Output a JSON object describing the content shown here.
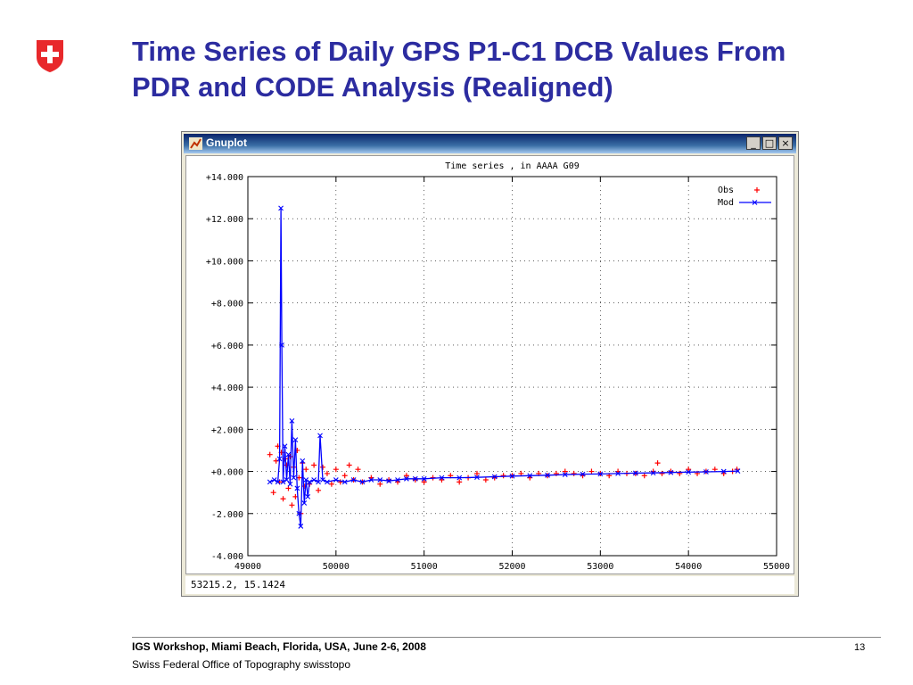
{
  "slide": {
    "title_lines": [
      "Time Series of Daily GPS P1-C1 DCB Values From",
      "PDR and CODE Analysis (Realigned)"
    ],
    "logo_icon": "swiss-cross-shield-icon",
    "brand_color": "#2c2ca0"
  },
  "window": {
    "title": "Gnuplot",
    "app_icon": "gnuplot-icon",
    "buttons": {
      "minimize": "_",
      "maximize": "□",
      "close": "×"
    },
    "status_text": "53215.2,  15.1424"
  },
  "chart_data": {
    "type": "scatter",
    "title": "Time series , in AAAA G09",
    "xlabel": "",
    "ylabel": "",
    "xlim": [
      49000,
      55000
    ],
    "ylim": [
      -4,
      14
    ],
    "x_ticks": [
      "49000",
      "50000",
      "51000",
      "52000",
      "53000",
      "54000",
      "55000"
    ],
    "y_ticks": [
      "-4.000",
      "-2.000",
      "+0.000",
      "+2.000",
      "+4.000",
      "+6.000",
      "+8.000",
      "+10.000",
      "+12.000",
      "+14.000"
    ],
    "grid": true,
    "legend_position": "top-right",
    "series": [
      {
        "name": "Obs",
        "marker": "+",
        "color": "#ff0000",
        "x": [
          49250,
          49290,
          49320,
          49340,
          49360,
          49380,
          49400,
          49420,
          49440,
          49460,
          49480,
          49500,
          49520,
          49540,
          49560,
          49580,
          49600,
          49620,
          49640,
          49660,
          49700,
          49750,
          49800,
          49850,
          49900,
          49950,
          50000,
          50050,
          50100,
          50150,
          50200,
          50250,
          50300,
          50400,
          50500,
          50600,
          50700,
          50800,
          50900,
          51000,
          51100,
          51200,
          51300,
          51400,
          51500,
          51600,
          51700,
          51800,
          51900,
          52000,
          52100,
          52200,
          52300,
          52400,
          52500,
          52600,
          52700,
          52800,
          52900,
          53000,
          53100,
          53200,
          53300,
          53400,
          53500,
          53600,
          53650,
          53700,
          53800,
          53900,
          54000,
          54100,
          54200,
          54300,
          54400,
          54500,
          54550
        ],
        "y": [
          0.8,
          -1.0,
          0.5,
          1.2,
          -0.5,
          0.9,
          -1.3,
          0.6,
          0.3,
          -0.8,
          0.7,
          -1.6,
          0.2,
          -1.2,
          1.0,
          -0.3,
          -2.0,
          0.4,
          -0.7,
          0.1,
          -0.6,
          0.3,
          -0.9,
          0.2,
          -0.1,
          -0.6,
          0.1,
          -0.5,
          -0.2,
          0.3,
          -0.4,
          0.1,
          -0.5,
          -0.3,
          -0.6,
          -0.4,
          -0.5,
          -0.2,
          -0.4,
          -0.5,
          -0.3,
          -0.4,
          -0.2,
          -0.5,
          -0.3,
          -0.1,
          -0.4,
          -0.3,
          -0.2,
          -0.2,
          -0.1,
          -0.3,
          -0.1,
          -0.2,
          -0.1,
          0.0,
          -0.1,
          -0.2,
          0.0,
          -0.1,
          -0.2,
          0.0,
          -0.1,
          -0.1,
          -0.2,
          0.0,
          0.4,
          -0.1,
          0.0,
          -0.1,
          0.1,
          -0.1,
          0.0,
          0.1,
          -0.1,
          0.0,
          0.1
        ]
      },
      {
        "name": "Mod",
        "marker": "x-line",
        "color": "#0000ff",
        "x": [
          49250,
          49300,
          49340,
          49360,
          49375,
          49385,
          49400,
          49420,
          49440,
          49460,
          49480,
          49500,
          49520,
          49540,
          49560,
          49580,
          49600,
          49620,
          49640,
          49660,
          49680,
          49700,
          49750,
          49800,
          49820,
          49850,
          49900,
          50000,
          50100,
          50200,
          50300,
          50400,
          50500,
          50600,
          50700,
          50800,
          50900,
          51000,
          51200,
          51400,
          51600,
          51800,
          52000,
          52200,
          52400,
          52600,
          52800,
          53000,
          53200,
          53400,
          53600,
          53800,
          54000,
          54200,
          54400,
          54560
        ],
        "y": [
          -0.5,
          -0.4,
          -0.5,
          0.6,
          12.5,
          6.0,
          -0.5,
          1.2,
          -0.4,
          0.8,
          -0.6,
          2.4,
          -0.3,
          1.5,
          -0.8,
          -2.0,
          -2.6,
          0.5,
          -1.5,
          -0.4,
          -1.2,
          -0.5,
          -0.4,
          -0.5,
          1.7,
          -0.4,
          -0.5,
          -0.4,
          -0.5,
          -0.4,
          -0.5,
          -0.4,
          -0.4,
          -0.45,
          -0.4,
          -0.35,
          -0.35,
          -0.35,
          -0.3,
          -0.3,
          -0.28,
          -0.25,
          -0.22,
          -0.2,
          -0.18,
          -0.15,
          -0.13,
          -0.12,
          -0.1,
          -0.08,
          -0.07,
          -0.05,
          -0.03,
          -0.02,
          0.0,
          0.02
        ]
      }
    ]
  },
  "footer": {
    "event": "IGS Workshop, Miami Beach, Florida, USA, June 2-6, 2008",
    "org": "Swiss Federal Office of Topography swisstopo",
    "page": "13"
  }
}
